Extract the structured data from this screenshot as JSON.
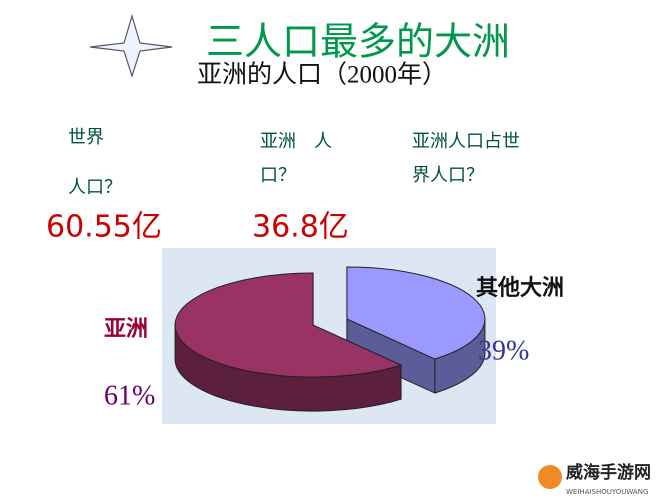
{
  "title": "三人口最多的大洲",
  "subtitle": "亚洲的人口（2000年）",
  "questions": [
    {
      "lines": [
        "世界",
        "人口？"
      ],
      "answer": "60.55亿"
    },
    {
      "lines": [
        "亚洲　人",
        "口？"
      ],
      "answer": "36.8亿"
    },
    {
      "lines": [
        "亚洲人口占世",
        "界人口？"
      ]
    }
  ],
  "chart_data": {
    "type": "pie",
    "categories": [
      "亚洲",
      "其他大洲"
    ],
    "values": [
      61,
      39
    ],
    "value_labels": [
      "61%",
      "39%"
    ],
    "colors": [
      "#993366",
      "#9999ff"
    ]
  },
  "watermark": {
    "name": "威海手游网",
    "url": "WEIHAISHOUYOUWANG"
  }
}
